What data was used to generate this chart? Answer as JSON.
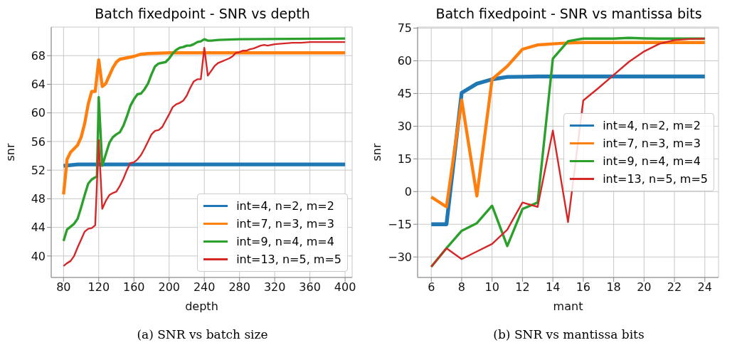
{
  "chart_data": [
    {
      "type": "line",
      "title": "Batch fixedpoint - SNR vs depth",
      "xlabel": "depth",
      "ylabel": "snr",
      "xlim": [
        66,
        408
      ],
      "ylim": [
        37,
        72
      ],
      "xticks": [
        80,
        120,
        160,
        200,
        240,
        280,
        320,
        360,
        400
      ],
      "yticks": [
        40,
        44,
        48,
        52,
        56,
        60,
        64,
        68
      ],
      "grid": true,
      "legend": "bottom right",
      "annotations": [
        "(a) SNR vs batch size"
      ],
      "series": [
        {
          "name": "int=4, n=2, m=2",
          "color": "#1f77b4",
          "x": [
            80,
            88,
            96,
            100,
            400
          ],
          "values": [
            52.6,
            52.7,
            52.8,
            52.8,
            52.8
          ]
        },
        {
          "name": "int=7, n=3, m=3",
          "color": "#ff7f0e",
          "x": [
            80,
            82,
            84,
            88,
            92,
            96,
            100,
            104,
            108,
            112,
            116,
            120,
            124,
            128,
            132,
            136,
            140,
            144,
            148,
            152,
            156,
            160,
            168,
            176,
            200,
            400
          ],
          "values": [
            48.6,
            51,
            53.5,
            54.5,
            55,
            55.5,
            56.6,
            58.5,
            61.2,
            63,
            63,
            67.4,
            63.7,
            64.1,
            65.2,
            66.3,
            67.1,
            67.5,
            67.6,
            67.7,
            67.8,
            67.9,
            68.2,
            68.3,
            68.4,
            68.4
          ]
        },
        {
          "name": "int=9, n=4, m=4",
          "color": "#2ca02c",
          "x": [
            80,
            84,
            88,
            92,
            96,
            100,
            104,
            108,
            112,
            116,
            118,
            120,
            124,
            128,
            132,
            136,
            140,
            144,
            148,
            152,
            156,
            160,
            164,
            168,
            172,
            176,
            180,
            184,
            188,
            192,
            196,
            200,
            204,
            208,
            212,
            216,
            220,
            224,
            228,
            232,
            236,
            240,
            244,
            248,
            256,
            280,
            400
          ],
          "values": [
            42.1,
            43.7,
            44.1,
            44.5,
            45.2,
            46.8,
            48.5,
            50.1,
            50.7,
            51,
            51.1,
            62.2,
            52.6,
            54.2,
            55.8,
            56.6,
            57,
            57.3,
            58.2,
            59.5,
            61,
            61.9,
            62.6,
            62.7,
            63.3,
            64.1,
            65.4,
            66.5,
            66.9,
            67,
            67.1,
            67.6,
            68.3,
            68.8,
            69.1,
            69.2,
            69.4,
            69.4,
            69.6,
            69.9,
            70,
            70.3,
            70.1,
            70.1,
            70.2,
            70.3,
            70.4
          ]
        },
        {
          "name": "int=13, n=5, m=5",
          "color": "#d62728",
          "x": [
            80,
            84,
            88,
            92,
            96,
            100,
            104,
            108,
            112,
            116,
            120,
            124,
            128,
            132,
            136,
            140,
            144,
            148,
            152,
            156,
            160,
            164,
            168,
            172,
            176,
            180,
            184,
            188,
            192,
            196,
            200,
            204,
            208,
            212,
            216,
            220,
            224,
            228,
            232,
            236,
            240,
            244,
            248,
            252,
            256,
            260,
            264,
            268,
            272,
            276,
            280,
            284,
            288,
            292,
            296,
            300,
            304,
            308,
            312,
            316,
            320,
            330,
            340,
            350,
            360,
            370,
            380,
            390,
            400
          ],
          "values": [
            38.6,
            39,
            39.3,
            40,
            41.2,
            42.3,
            43.4,
            43.8,
            43.9,
            44.3,
            56.2,
            46.6,
            47.7,
            48.5,
            48.8,
            49,
            49.8,
            50.8,
            52,
            53,
            53.1,
            53.5,
            54.1,
            55,
            56,
            57,
            57.5,
            57.6,
            58,
            58.9,
            59.8,
            60.8,
            61.2,
            61.4,
            61.7,
            62.4,
            63.5,
            64.4,
            64.7,
            64.7,
            69.1,
            65.2,
            65.9,
            66.6,
            67,
            67.2,
            67.4,
            67.6,
            67.9,
            68.4,
            68.5,
            68.7,
            68.7,
            68.9,
            69,
            69.2,
            69.4,
            69.5,
            69.4,
            69.5,
            69.6,
            69.7,
            69.8,
            69.8,
            69.9,
            69.9,
            69.9,
            69.9,
            69.9
          ]
        }
      ]
    },
    {
      "type": "line",
      "title": "Batch fixedpoint - SNR vs mantissa bits",
      "xlabel": "mant",
      "ylabel": "snr",
      "xlim": [
        5.1,
        24.9
      ],
      "ylim": [
        -39.4,
        75.5
      ],
      "xticks": [
        6,
        8,
        10,
        12,
        14,
        16,
        18,
        20,
        22,
        24
      ],
      "yticks": [
        -30,
        -15,
        0,
        15,
        30,
        45,
        60,
        75
      ],
      "grid": true,
      "legend": "right",
      "annotations": [
        "(b) SNR vs mantissa bits"
      ],
      "x": [
        6,
        7,
        8,
        9,
        10,
        11,
        12,
        13,
        14,
        15,
        16,
        17,
        18,
        19,
        20,
        21,
        22,
        23,
        24
      ],
      "series": [
        {
          "name": "int=4, n=2, m=2",
          "color": "#1f77b4",
          "values": [
            -15,
            -15,
            45.3,
            49.5,
            51.5,
            52.6,
            52.7,
            52.8,
            52.8,
            52.8,
            52.8,
            52.8,
            52.8,
            52.8,
            52.8,
            52.8,
            52.8,
            52.8,
            52.8
          ]
        },
        {
          "name": "int=7, n=3, m=3",
          "color": "#ff7f0e",
          "values": [
            -2.5,
            -7,
            42,
            -2,
            51.5,
            57.5,
            65.3,
            67.3,
            67.8,
            68.2,
            68.4,
            68.4,
            68.4,
            68.4,
            68.4,
            68.4,
            68.4,
            68.4,
            68.4
          ]
        },
        {
          "name": "int=9, n=4, m=4",
          "color": "#2ca02c",
          "values": [
            -34.5,
            -26,
            -18,
            -14.5,
            -6.5,
            -25,
            -8,
            -5,
            61,
            69,
            70.2,
            70.2,
            70.2,
            70.5,
            70.3,
            70.2,
            70.2,
            70.2,
            70.2
          ]
        },
        {
          "name": "int=13, n=5, m=5",
          "color": "#d62728",
          "values": [
            -34.5,
            -26,
            -31,
            -27.5,
            -24,
            -17.5,
            -5,
            -7,
            28,
            -14,
            41.8,
            47.5,
            53.5,
            59.5,
            64.3,
            67.8,
            69.5,
            70,
            70.2
          ]
        }
      ]
    }
  ]
}
